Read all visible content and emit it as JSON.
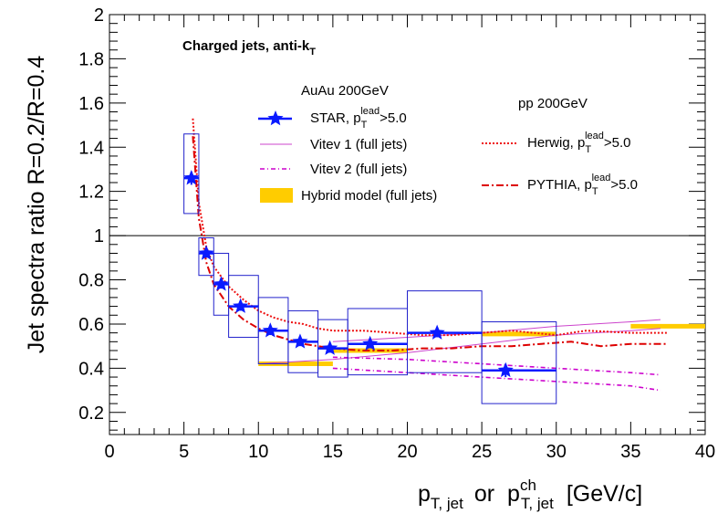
{
  "chart_data": {
    "type": "scatter",
    "title": "Charged jets, anti-k",
    "title_sub": "T",
    "xlabel": {
      "main": "p",
      "sub1": "T, jet",
      "mid": "or",
      "main2": "p",
      "sup2": "ch",
      "sub2": "T, jet",
      "unit": "[GeV/c]"
    },
    "ylabel": "Jet spectra ratio R=0.2/R=0.4",
    "xlim": [
      0,
      40
    ],
    "ylim": [
      0.1,
      2.0
    ],
    "x_ticks": [
      "0",
      "5",
      "10",
      "15",
      "20",
      "25",
      "30",
      "35",
      "40"
    ],
    "y_ticks": [
      "0.2",
      "0.4",
      "0.6",
      "0.8",
      "1",
      "1.2",
      "1.4",
      "1.6",
      "1.8",
      "2"
    ],
    "x_tick_values": [
      0,
      5,
      10,
      15,
      20,
      25,
      30,
      35,
      40
    ],
    "y_tick_values": [
      0.2,
      0.4,
      0.6,
      0.8,
      1.0,
      1.2,
      1.4,
      1.6,
      1.8,
      2.0
    ],
    "reference_line": 1.0,
    "legend": {
      "group1_title": "AuAu 200GeV",
      "group2_title": "pp 200GeV",
      "star": {
        "text": "STAR, p",
        "sub": "T",
        "sup": "lead",
        "suffix": ">5.0"
      },
      "vitev1": "Vitev 1 (full jets)",
      "vitev2": "Vitev 2 (full jets)",
      "hybrid": "Hybrid model (full jets)",
      "herwig": {
        "text": "Herwig, p",
        "sub": "T",
        "sup": "lead",
        "suffix": ">5.0"
      },
      "pythia": {
        "text": "PYTHIA, p",
        "sub": "T",
        "sup": "lead",
        "suffix": ">5.0"
      }
    },
    "colors": {
      "star": "#0a1aff",
      "vitev1": "#cc44cc",
      "vitev2": "#cc00cc",
      "hybrid": "#ffcc00",
      "herwig": "#ee1111",
      "pythia": "#dd0000",
      "box": "#2222cc"
    },
    "series": [
      {
        "name": "STAR, pTlead>5.0",
        "points": [
          {
            "x": 5.5,
            "y": 1.26,
            "xlo": 5.0,
            "xhi": 6.0,
            "sys_lo": 1.1,
            "sys_hi": 1.46,
            "stat": 0.03
          },
          {
            "x": 6.5,
            "y": 0.92,
            "xlo": 6.0,
            "xhi": 7.0,
            "sys_lo": 0.82,
            "sys_hi": 0.99,
            "stat": 0.02
          },
          {
            "x": 7.5,
            "y": 0.78,
            "xlo": 7.0,
            "xhi": 8.0,
            "sys_lo": 0.64,
            "sys_hi": 0.92,
            "stat": 0.02
          },
          {
            "x": 8.8,
            "y": 0.68,
            "xlo": 8.0,
            "xhi": 10.0,
            "sys_lo": 0.54,
            "sys_hi": 0.82,
            "stat": 0.02
          },
          {
            "x": 10.8,
            "y": 0.57,
            "xlo": 10.0,
            "xhi": 12.0,
            "sys_lo": 0.42,
            "sys_hi": 0.72,
            "stat": 0.02
          },
          {
            "x": 12.8,
            "y": 0.52,
            "xlo": 12.0,
            "xhi": 14.0,
            "sys_lo": 0.38,
            "sys_hi": 0.66,
            "stat": 0.02
          },
          {
            "x": 14.8,
            "y": 0.49,
            "xlo": 14.0,
            "xhi": 16.0,
            "sys_lo": 0.36,
            "sys_hi": 0.62,
            "stat": 0.02
          },
          {
            "x": 17.5,
            "y": 0.51,
            "xlo": 16.0,
            "xhi": 20.0,
            "sys_lo": 0.37,
            "sys_hi": 0.67,
            "stat": 0.02
          },
          {
            "x": 22.0,
            "y": 0.56,
            "xlo": 20.0,
            "xhi": 25.0,
            "sys_lo": 0.38,
            "sys_hi": 0.75,
            "stat": 0.02
          },
          {
            "x": 26.6,
            "y": 0.39,
            "xlo": 25.0,
            "xhi": 30.0,
            "sys_lo": 0.24,
            "sys_hi": 0.61,
            "stat": 0.03
          }
        ]
      },
      {
        "name": "Vitev 1 (full jets)",
        "upper": [
          [
            15,
            0.52
          ],
          [
            20,
            0.54
          ],
          [
            25,
            0.56
          ],
          [
            30,
            0.59
          ],
          [
            35,
            0.61
          ],
          [
            37,
            0.62
          ]
        ],
        "lower": [
          [
            10,
            0.42
          ],
          [
            15,
            0.44
          ],
          [
            20,
            0.47
          ],
          [
            25,
            0.51
          ],
          [
            30,
            0.55
          ],
          [
            35,
            0.57
          ],
          [
            37,
            0.58
          ]
        ]
      },
      {
        "name": "Vitev 2 (full jets)",
        "upper": [
          [
            15,
            0.45
          ],
          [
            20,
            0.44
          ],
          [
            25,
            0.42
          ],
          [
            30,
            0.4
          ],
          [
            35,
            0.38
          ],
          [
            37,
            0.37
          ]
        ],
        "lower": [
          [
            15,
            0.4
          ],
          [
            20,
            0.38
          ],
          [
            25,
            0.36
          ],
          [
            30,
            0.34
          ],
          [
            35,
            0.32
          ],
          [
            37,
            0.3
          ]
        ]
      },
      {
        "name": "Hybrid model (full jets)",
        "segments": [
          [
            10,
            15,
            0.42
          ],
          [
            15,
            20,
            0.48
          ],
          [
            25,
            30,
            0.555
          ],
          [
            35,
            40,
            0.59
          ]
        ]
      },
      {
        "name": "Herwig, pTlead>5.0",
        "points": [
          [
            5.6,
            1.53
          ],
          [
            6.0,
            1.15
          ],
          [
            6.5,
            0.95
          ],
          [
            7.0,
            0.86
          ],
          [
            8.0,
            0.77
          ],
          [
            9.0,
            0.71
          ],
          [
            10.0,
            0.66
          ],
          [
            11.0,
            0.63
          ],
          [
            12.0,
            0.61
          ],
          [
            13.0,
            0.6
          ],
          [
            14.0,
            0.58
          ],
          [
            15.0,
            0.57
          ],
          [
            17.0,
            0.57
          ],
          [
            19.0,
            0.56
          ],
          [
            21.0,
            0.55
          ],
          [
            23.0,
            0.55
          ],
          [
            25.0,
            0.56
          ],
          [
            27.0,
            0.57
          ],
          [
            30.0,
            0.55
          ],
          [
            32.0,
            0.57
          ],
          [
            35.0,
            0.56
          ],
          [
            37.5,
            0.56
          ]
        ]
      },
      {
        "name": "PYTHIA, pTlead>5.0",
        "points": [
          [
            5.6,
            1.45
          ],
          [
            6.0,
            1.08
          ],
          [
            6.5,
            0.88
          ],
          [
            7.0,
            0.78
          ],
          [
            8.0,
            0.68
          ],
          [
            9.0,
            0.62
          ],
          [
            10.0,
            0.58
          ],
          [
            11.0,
            0.55
          ],
          [
            12.0,
            0.53
          ],
          [
            13.0,
            0.51
          ],
          [
            14.0,
            0.5
          ],
          [
            15.0,
            0.49
          ],
          [
            17.0,
            0.48
          ],
          [
            19.0,
            0.48
          ],
          [
            21.0,
            0.49
          ],
          [
            23.0,
            0.49
          ],
          [
            25.0,
            0.5
          ],
          [
            27.0,
            0.5
          ],
          [
            29.0,
            0.51
          ],
          [
            31.0,
            0.52
          ],
          [
            33.0,
            0.5
          ],
          [
            35.0,
            0.51
          ],
          [
            37.5,
            0.51
          ]
        ]
      }
    ]
  }
}
